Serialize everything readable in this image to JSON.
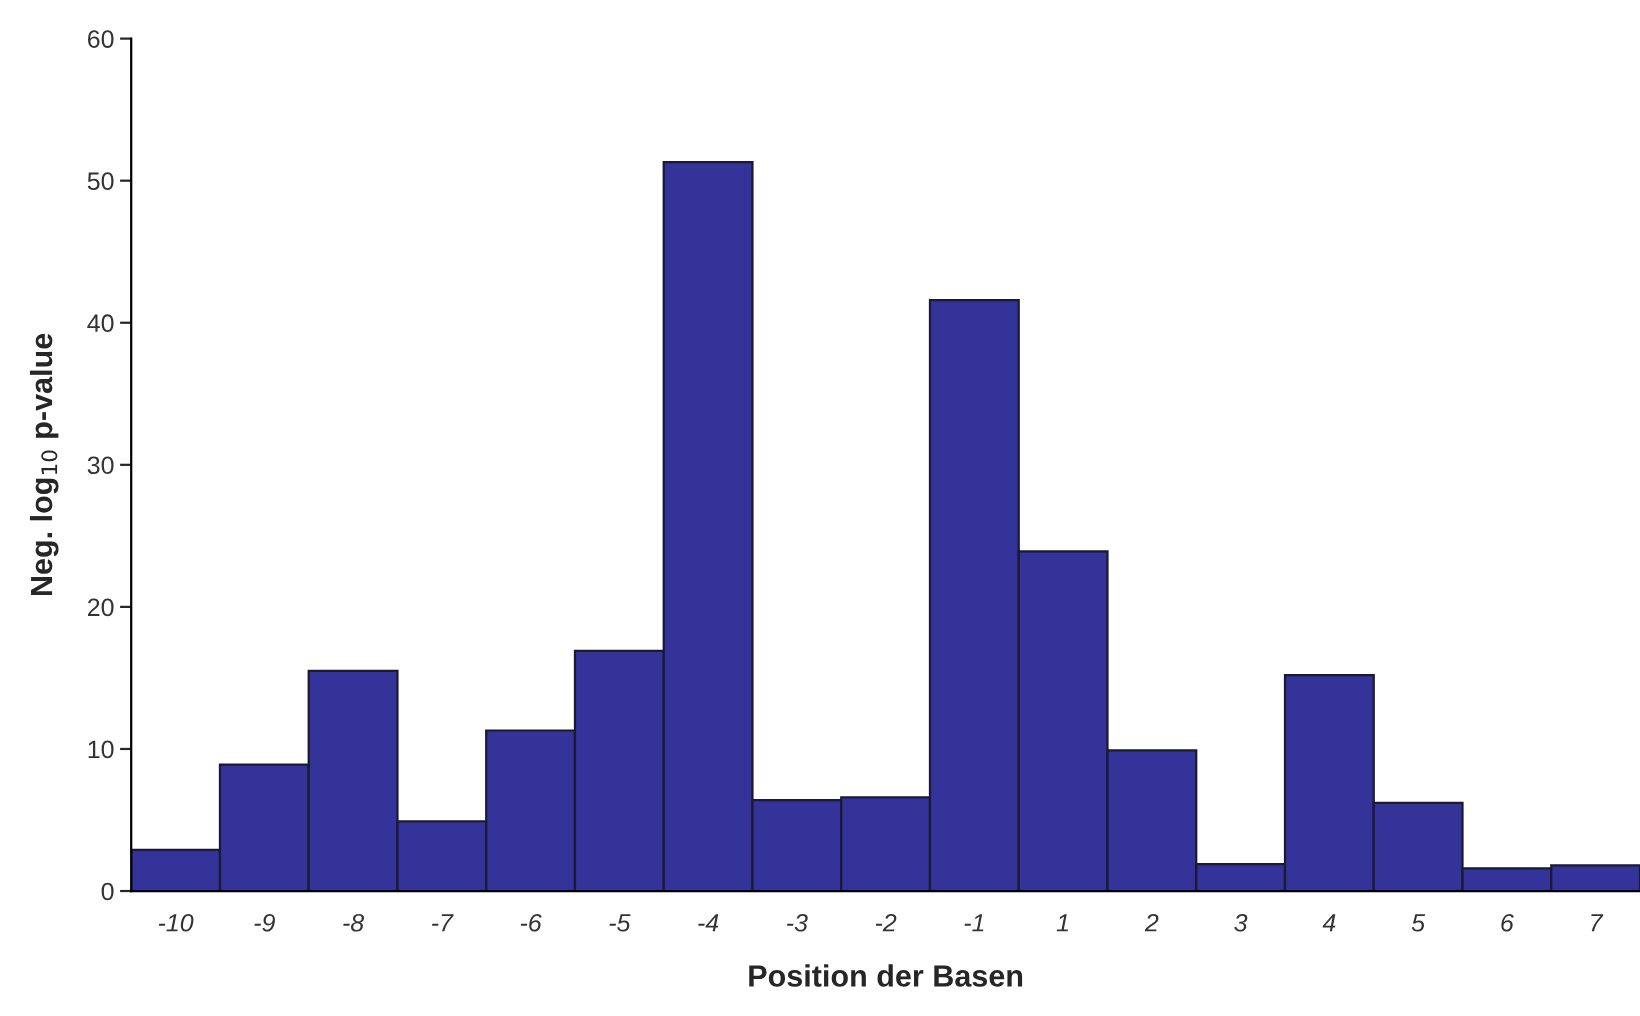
{
  "chart_data": {
    "type": "bar",
    "xlabel": "Position der Basen",
    "ylabel": "Neg. log$_{10}$ p-value",
    "categories": [
      "-10",
      "-9",
      "-8",
      "-7",
      "-6",
      "-5",
      "-4",
      "-3",
      "-2",
      "-1",
      "1",
      "2",
      "3",
      "4",
      "5",
      "6",
      "7"
    ],
    "values": [
      2.9,
      8.9,
      15.5,
      4.9,
      11.3,
      16.9,
      51.3,
      6.4,
      6.6,
      41.6,
      23.9,
      9.9,
      1.9,
      15.2,
      6.2,
      1.6,
      1.8
    ],
    "color": "#333399",
    "ylim": [
      0,
      60
    ],
    "yticks": [
      0,
      10,
      20,
      30,
      40,
      50,
      60
    ],
    "grid": false,
    "legend": false
  }
}
